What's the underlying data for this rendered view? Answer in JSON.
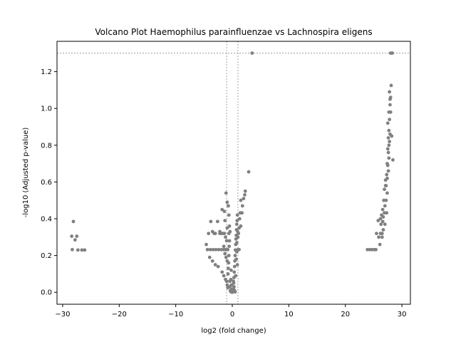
{
  "chart_data": {
    "type": "scatter",
    "title": "Volcano Plot Haemophilus parainfluenzae vs Lachnospira eligens",
    "xlabel": "log2 (fold change)",
    "ylabel": "-log10 (Adjusted p-value)",
    "xlim": [
      -31,
      31.5
    ],
    "ylim": [
      -0.065,
      1.365
    ],
    "xticks": [
      -30,
      -20,
      -10,
      0,
      10,
      20,
      30
    ],
    "xtick_labels": [
      "−30",
      "−20",
      "−10",
      "0",
      "10",
      "20",
      "30"
    ],
    "yticks": [
      0.0,
      0.2,
      0.4,
      0.6,
      0.8,
      1.0,
      1.2
    ],
    "ytick_labels": [
      "0.0",
      "0.2",
      "0.4",
      "0.6",
      "0.8",
      "1.0",
      "1.2"
    ],
    "threshold_lines": {
      "vertical": [
        -1,
        1
      ],
      "horizontal": [
        1.301
      ]
    },
    "grid": false,
    "point_color": "#808080",
    "line_color": "#808080",
    "series": [
      {
        "points": [
          [
            -28.1,
            0.385
          ],
          [
            -28.4,
            0.305
          ],
          [
            -27.5,
            0.305
          ],
          [
            -27.8,
            0.285
          ],
          [
            -28.3,
            0.232
          ],
          [
            -27.3,
            0.23
          ],
          [
            -26.6,
            0.23
          ],
          [
            -26.1,
            0.23
          ],
          [
            -4.6,
            0.26
          ],
          [
            -4.2,
            0.32
          ],
          [
            -3.8,
            0.385
          ],
          [
            -3.5,
            0.33
          ],
          [
            -3.2,
            0.32
          ],
          [
            -3.0,
            0.32
          ],
          [
            -2.6,
            0.385
          ],
          [
            -2.2,
            0.33
          ],
          [
            -1.8,
            0.45
          ],
          [
            -1.4,
            0.44
          ],
          [
            -1.3,
            0.39
          ],
          [
            -1.1,
            0.54
          ],
          [
            -0.9,
            0.49
          ],
          [
            -0.7,
            0.47
          ],
          [
            -0.6,
            0.42
          ],
          [
            -0.5,
            0.36
          ],
          [
            -0.4,
            0.33
          ],
          [
            -4.4,
            0.232
          ],
          [
            -3.9,
            0.232
          ],
          [
            -3.4,
            0.232
          ],
          [
            -2.9,
            0.232
          ],
          [
            -2.4,
            0.232
          ],
          [
            -1.9,
            0.232
          ],
          [
            -1.5,
            0.232
          ],
          [
            -1.2,
            0.232
          ],
          [
            -4.0,
            0.19
          ],
          [
            -3.5,
            0.17
          ],
          [
            -3.0,
            0.15
          ],
          [
            -2.5,
            0.14
          ],
          [
            -2.2,
            0.32
          ],
          [
            -1.9,
            0.32
          ],
          [
            -1.6,
            0.32
          ],
          [
            -1.4,
            0.32
          ],
          [
            -1.2,
            0.3
          ],
          [
            -1.0,
            0.28
          ],
          [
            -1.5,
            0.25
          ],
          [
            -1.3,
            0.21
          ],
          [
            -1.1,
            0.19
          ],
          [
            -0.9,
            0.17
          ],
          [
            -1.8,
            0.11
          ],
          [
            -1.5,
            0.09
          ],
          [
            -1.2,
            0.07
          ],
          [
            -1.0,
            0.06
          ],
          [
            -0.9,
            0.04
          ],
          [
            -0.8,
            0.025
          ],
          [
            -0.75,
            0.1
          ],
          [
            -0.7,
            0.13
          ],
          [
            -0.65,
            0.16
          ],
          [
            -0.6,
            0.2
          ],
          [
            -0.55,
            0.25
          ],
          [
            -0.5,
            0.28
          ],
          [
            -0.45,
            0.06
          ],
          [
            -0.4,
            0.03
          ],
          [
            -0.35,
            0.01
          ],
          [
            -0.3,
            0.005
          ],
          [
            -0.25,
            0.07
          ],
          [
            -0.2,
            0.12
          ],
          [
            -0.15,
            0.04
          ],
          [
            -0.1,
            0.015
          ],
          [
            0.0,
            0.0
          ],
          [
            0.1,
            0.005
          ],
          [
            0.2,
            0.02
          ],
          [
            0.25,
            0.05
          ],
          [
            0.3,
            0.08
          ],
          [
            0.35,
            0.11
          ],
          [
            0.4,
            0.14
          ],
          [
            0.45,
            0.17
          ],
          [
            0.5,
            0.2
          ],
          [
            0.55,
            0.23
          ],
          [
            0.6,
            0.26
          ],
          [
            0.65,
            0.29
          ],
          [
            0.7,
            0.31
          ],
          [
            0.75,
            0.34
          ],
          [
            0.8,
            0.37
          ],
          [
            0.85,
            0.39
          ],
          [
            0.9,
            0.42
          ],
          [
            0.95,
            0.33
          ],
          [
            1.0,
            0.3
          ],
          [
            1.1,
            0.32
          ],
          [
            1.2,
            0.35
          ],
          [
            1.3,
            0.4
          ],
          [
            1.4,
            0.432
          ],
          [
            1.5,
            0.5
          ],
          [
            1.7,
            0.432
          ],
          [
            1.8,
            0.47
          ],
          [
            2.0,
            0.51
          ],
          [
            2.2,
            0.53
          ],
          [
            2.3,
            0.55
          ],
          [
            2.9,
            0.655
          ],
          [
            3.5,
            1.301
          ],
          [
            0.2,
            0.06
          ],
          [
            0.3,
            0.03
          ],
          [
            0.4,
            0.01
          ],
          [
            0.5,
            0.002
          ],
          [
            -0.2,
            0.002
          ],
          [
            0.6,
            0.09
          ],
          [
            0.7,
            0.18
          ],
          [
            0.8,
            0.22
          ],
          [
            0.9,
            0.15
          ],
          [
            1.0,
            0.232
          ],
          [
            0.8,
            0.27
          ],
          [
            -0.8,
            0.232
          ],
          [
            -0.6,
            0.32
          ],
          [
            -0.9,
            0.35
          ],
          [
            -1.1,
            0.232
          ],
          [
            1.2,
            0.232
          ],
          [
            1.5,
            0.36
          ],
          [
            1.7,
            0.432
          ],
          [
            23.9,
            0.232
          ],
          [
            24.3,
            0.232
          ],
          [
            24.7,
            0.232
          ],
          [
            25.1,
            0.232
          ],
          [
            25.4,
            0.232
          ],
          [
            26.1,
            0.26
          ],
          [
            25.5,
            0.32
          ],
          [
            25.9,
            0.3
          ],
          [
            26.2,
            0.32
          ],
          [
            26.5,
            0.32
          ],
          [
            25.8,
            0.39
          ],
          [
            26.3,
            0.37
          ],
          [
            26.6,
            0.385
          ],
          [
            26.7,
            0.41
          ],
          [
            26.9,
            0.432
          ],
          [
            27.0,
            0.47
          ],
          [
            27.2,
            0.5
          ],
          [
            27.4,
            0.54
          ],
          [
            27.2,
            0.58
          ],
          [
            27.4,
            0.62
          ],
          [
            27.6,
            0.66
          ],
          [
            27.3,
            0.64
          ],
          [
            27.5,
            0.69
          ],
          [
            27.7,
            0.73
          ],
          [
            27.5,
            0.78
          ],
          [
            27.7,
            0.8
          ],
          [
            27.8,
            0.82
          ],
          [
            27.6,
            0.84
          ],
          [
            27.9,
            0.86
          ],
          [
            27.7,
            0.88
          ],
          [
            27.5,
            0.92
          ],
          [
            27.8,
            0.94
          ],
          [
            27.7,
            0.98
          ],
          [
            28.0,
            0.98
          ],
          [
            27.9,
            1.02
          ],
          [
            28.0,
            1.06
          ],
          [
            27.8,
            1.09
          ],
          [
            28.1,
            1.125
          ],
          [
            27.9,
            1.05
          ],
          [
            27.6,
            0.76
          ],
          [
            27.4,
            0.7
          ],
          [
            27.1,
            0.61
          ],
          [
            26.9,
            0.56
          ],
          [
            26.8,
            0.5
          ],
          [
            26.6,
            0.45
          ],
          [
            26.4,
            0.42
          ],
          [
            26.2,
            0.4
          ],
          [
            27.0,
            0.37
          ],
          [
            27.3,
            0.432
          ],
          [
            27.1,
            0.58
          ],
          [
            26.7,
            0.34
          ],
          [
            26.5,
            0.3
          ],
          [
            28.0,
            1.301
          ],
          [
            28.3,
            1.301
          ],
          [
            28.2,
            0.85
          ],
          [
            28.4,
            0.72
          ]
        ]
      }
    ]
  }
}
